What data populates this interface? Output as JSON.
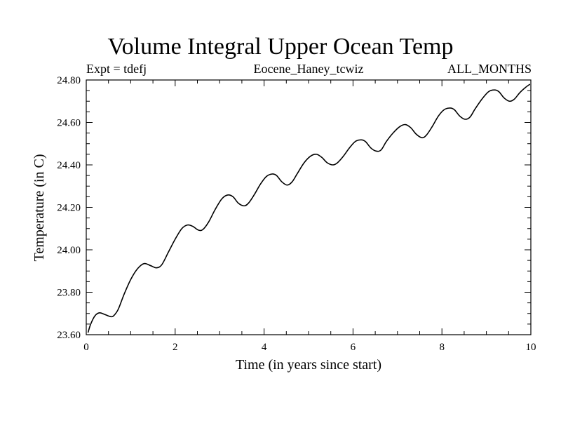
{
  "chart_data": {
    "type": "line",
    "title": "Volume Integral Upper Ocean Temp",
    "subtitle_left": "Expt = tdefj",
    "subtitle_center": "Eocene_Haney_tcwiz",
    "subtitle_right": "ALL_MONTHS",
    "xlabel": "Time (in years since start)",
    "ylabel": "Temperature (in C)",
    "xlim": [
      0,
      10
    ],
    "ylim": [
      23.6,
      24.8
    ],
    "x_ticks": [
      0,
      2,
      4,
      6,
      8,
      10
    ],
    "x_tick_labels": [
      "0",
      "2",
      "4",
      "6",
      "8",
      "10"
    ],
    "y_ticks": [
      23.6,
      23.8,
      24.0,
      24.2,
      24.4,
      24.6,
      24.8
    ],
    "y_tick_labels": [
      "23.60",
      "23.80",
      "24.00",
      "24.20",
      "24.40",
      "24.60",
      "24.80"
    ],
    "grid": false,
    "series": [
      {
        "color": "#000000",
        "x": [
          0.04,
          0.1,
          0.2,
          0.3,
          0.42,
          0.55,
          0.62,
          0.72,
          0.85,
          1.0,
          1.15,
          1.3,
          1.45,
          1.58,
          1.7,
          1.85,
          2.0,
          2.15,
          2.28,
          2.4,
          2.52,
          2.62,
          2.75,
          2.9,
          3.05,
          3.18,
          3.3,
          3.42,
          3.55,
          3.65,
          3.78,
          3.92,
          4.05,
          4.18,
          4.28,
          4.4,
          4.52,
          4.63,
          4.75,
          4.9,
          5.05,
          5.18,
          5.3,
          5.42,
          5.55,
          5.65,
          5.78,
          5.92,
          6.05,
          6.18,
          6.28,
          6.4,
          6.52,
          6.63,
          6.75,
          6.9,
          7.05,
          7.18,
          7.3,
          7.42,
          7.55,
          7.65,
          7.78,
          7.92,
          8.05,
          8.18,
          8.28,
          8.4,
          8.52,
          8.63,
          8.75,
          8.9,
          9.05,
          9.18,
          9.28,
          9.4,
          9.52,
          9.63,
          9.75,
          9.88,
          9.98
        ],
        "y": [
          23.61,
          23.65,
          23.69,
          23.703,
          23.695,
          23.685,
          23.69,
          23.72,
          23.79,
          23.86,
          23.91,
          23.935,
          23.925,
          23.915,
          23.93,
          23.99,
          24.05,
          24.1,
          24.117,
          24.11,
          24.093,
          24.095,
          24.13,
          24.19,
          24.24,
          24.258,
          24.25,
          24.22,
          24.207,
          24.22,
          24.26,
          24.31,
          24.345,
          24.357,
          24.35,
          24.32,
          24.305,
          24.32,
          24.36,
          24.41,
          24.442,
          24.45,
          24.435,
          24.41,
          24.4,
          24.41,
          24.44,
          24.48,
          24.51,
          24.518,
          24.51,
          24.48,
          24.465,
          24.47,
          24.51,
          24.55,
          24.58,
          24.59,
          24.575,
          24.545,
          24.528,
          24.54,
          24.58,
          24.63,
          24.66,
          24.668,
          24.66,
          24.63,
          24.615,
          24.625,
          24.665,
          24.71,
          24.745,
          24.753,
          24.745,
          24.715,
          24.7,
          24.71,
          24.74,
          24.765,
          24.78
        ]
      }
    ]
  }
}
